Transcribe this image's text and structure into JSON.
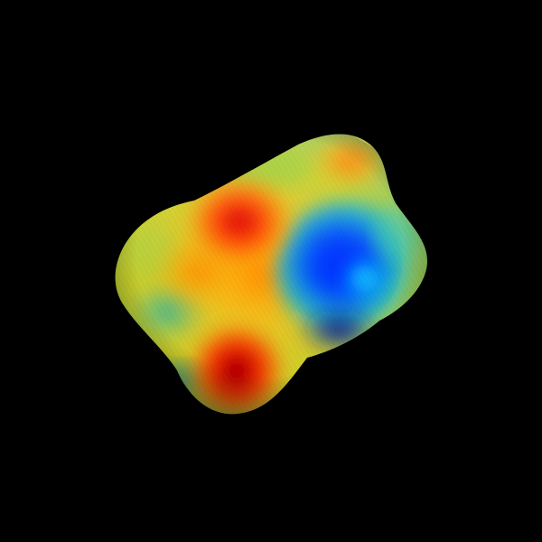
{
  "scene": {
    "subject": "molecular-surface",
    "background_color": "#000000",
    "colormap": [
      "#00008b",
      "#0033ff",
      "#00e5ff",
      "#3fbf9f",
      "#b8d02a",
      "#ffb000",
      "#ff5a00",
      "#e00000",
      "#8a0000"
    ]
  }
}
